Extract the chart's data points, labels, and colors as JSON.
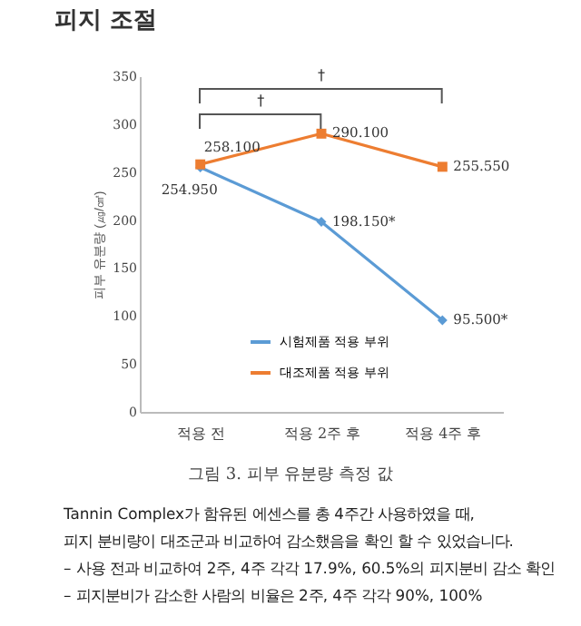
{
  "chart_data": {
    "type": "line",
    "title": "피지 조절",
    "ylabel": "피부 유분량 (㎍/㎠)",
    "categories": [
      "적용 전",
      "적용 2주 후",
      "적용 4주 후"
    ],
    "series": [
      {
        "name": "시험제품 적용 부위",
        "color": "#5b9bd5",
        "marker": "diamond",
        "values": [
          254.95,
          198.15,
          95.5
        ],
        "value_labels": [
          "254.950",
          "198.150*",
          "95.500*"
        ]
      },
      {
        "name": "대조제품 적용 부위",
        "color": "#ed7d31",
        "marker": "square",
        "values": [
          258.1,
          290.1,
          255.55
        ],
        "value_labels": [
          "258.100",
          "290.100",
          "255.550"
        ]
      }
    ],
    "ylim": [
      0,
      350
    ],
    "yticks": [
      0,
      50,
      100,
      150,
      200,
      250,
      300,
      350
    ],
    "legend": "bottom",
    "grid": false,
    "annotations": [
      "†",
      "†",
      "그림 3. 피부 유분량 측정 값",
      "Tannin Complex가 함유된 에센스를 총 4주간 사용하였을 때,",
      "피지 분비량이 대조군과 비교하여 감소했음을 확인 할 수 있었습니다.",
      "– 사용 전과 비교하여 2주, 4주 각각 17.9%, 60.5%의 피지분비 감소 확인",
      "– 피지분비가 감소한 사람의 비율은 2주, 4주 각각 90%, 100%"
    ]
  }
}
